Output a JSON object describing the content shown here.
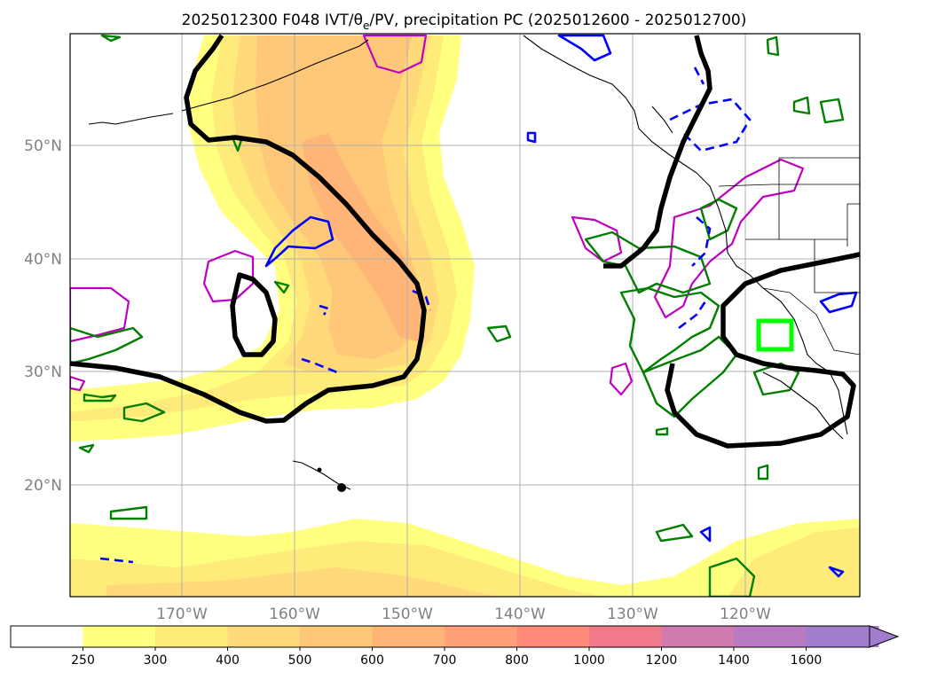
{
  "title": "2025012300 F048 IVT/θ",
  "title_sub": "e",
  "title_rest": "/PV, precipitation PC (2025012600 - 2025012700)",
  "lon_labels": [
    "170°W",
    "160°W",
    "150°W",
    "140°W",
    "130°W",
    "120°W"
  ],
  "lat_labels": [
    "50°N",
    "40°N",
    "30°N",
    "20°N"
  ],
  "colorbar": {
    "ticks": [
      "250",
      "300",
      "400",
      "500",
      "600",
      "700",
      "800",
      "1000",
      "1200",
      "1400",
      "1600"
    ],
    "colors": [
      "#ffffff",
      "#ffff80",
      "#ffeb7a",
      "#ffd97a",
      "#ffc878",
      "#ffb478",
      "#ffa078",
      "#ff8a7a",
      "#f07a8a",
      "#d07ab0",
      "#b87ac0",
      "#a07ccc"
    ],
    "extend": "max"
  },
  "colors": {
    "pv_contour": "#000000",
    "theta_e_low": "#007f00",
    "theta_e_high": "#0000ff",
    "precip_pc": "#c000c0",
    "target_box": "#00ff00"
  }
}
